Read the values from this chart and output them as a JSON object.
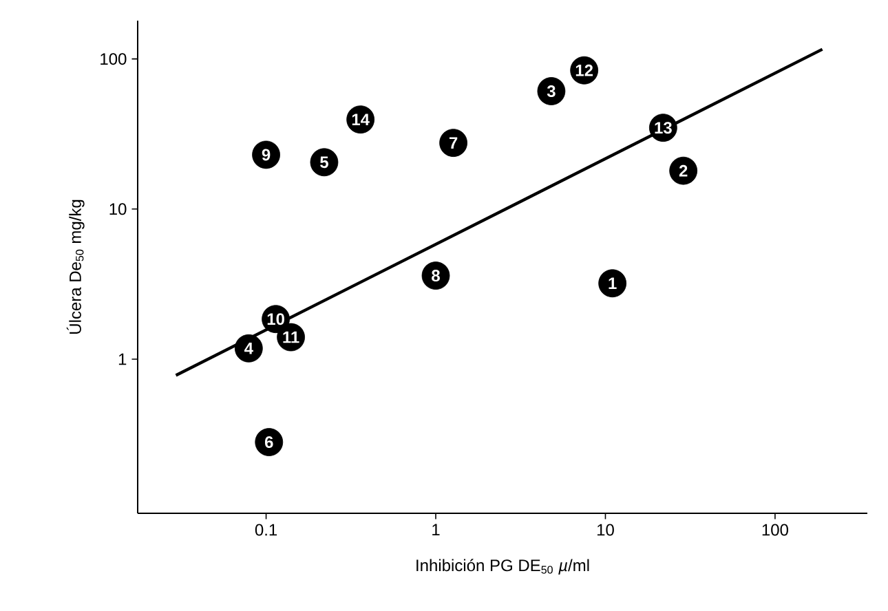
{
  "chart_data": {
    "type": "scatter",
    "xlabel": "Inhibición PG DE$_{50}$ *µ*/ml",
    "ylabel": "Úlcera De$_{50}$ mg/kg",
    "log": "xy",
    "xlim": [
      0.0175,
      350
    ],
    "ylim": [
      0.094,
      180
    ],
    "xticks": [
      0.1,
      1,
      10,
      100
    ],
    "yticks": [
      1,
      10,
      100
    ],
    "grid": false,
    "series": [
      {
        "color": "#000000",
        "marker": "circle",
        "x": [
          11,
          28.8,
          4.8,
          0.079,
          0.22,
          0.104,
          1.27,
          1.0,
          0.1,
          0.114,
          0.14,
          7.5,
          21.9,
          0.36
        ],
        "values": [
          3.2,
          18,
          61,
          1.18,
          20.5,
          0.28,
          27.6,
          3.6,
          23,
          1.85,
          1.4,
          84,
          34.8,
          39.5
        ]
      },
      {
        "type": "line",
        "color": "#000000",
        "marker": "none",
        "line_style": "solid",
        "x": [
          0.0294,
          190
        ],
        "values": [
          0.78,
          116
        ]
      }
    ],
    "annotations": [
      {
        "text": "1",
        "x": 11,
        "y": 3.2
      },
      {
        "text": "2",
        "x": 28.8,
        "y": 18
      },
      {
        "text": "3",
        "x": 4.8,
        "y": 61
      },
      {
        "text": "4",
        "x": 0.079,
        "y": 1.18
      },
      {
        "text": "5",
        "x": 0.22,
        "y": 20.5
      },
      {
        "text": "6",
        "x": 0.104,
        "y": 0.28
      },
      {
        "text": "7",
        "x": 1.27,
        "y": 27.6
      },
      {
        "text": "8",
        "x": 1.0,
        "y": 3.6
      },
      {
        "text": "9",
        "x": 0.1,
        "y": 23
      },
      {
        "text": "10",
        "x": 0.114,
        "y": 1.85
      },
      {
        "text": "11",
        "x": 0.14,
        "y": 1.4
      },
      {
        "text": "12",
        "x": 7.5,
        "y": 84
      },
      {
        "text": "13",
        "x": 21.9,
        "y": 34.8
      },
      {
        "text": "14",
        "x": 0.36,
        "y": 39.5
      }
    ]
  }
}
